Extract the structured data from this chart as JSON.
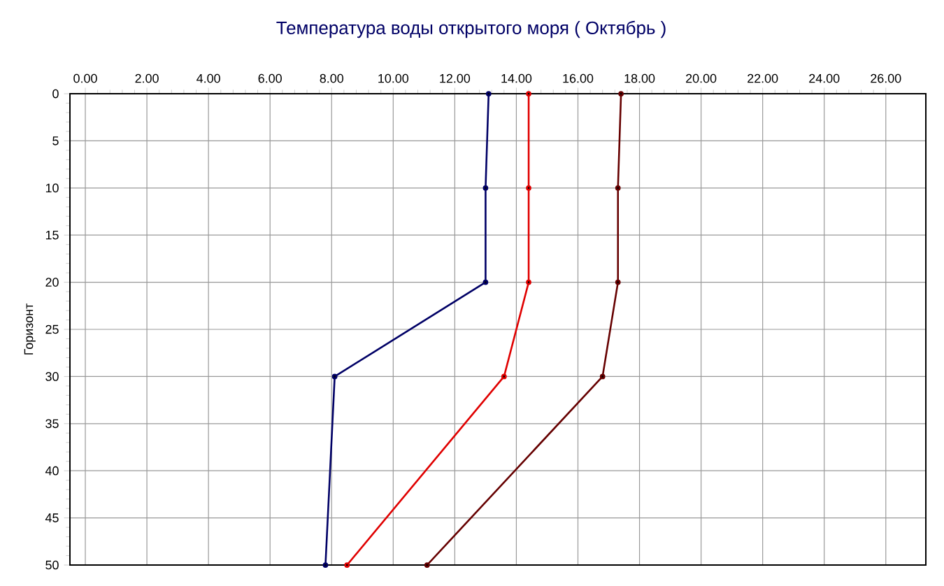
{
  "chart_data": {
    "type": "line",
    "title": "Температура воды открытого моря     ( Октябрь )",
    "ylabel": "Горизонт",
    "series": [
      {
        "color": "#000066",
        "x": [
          13.1,
          13.0,
          13.0,
          8.1,
          7.8
        ],
        "values": [
          0,
          10,
          20,
          30,
          50
        ]
      },
      {
        "color": "#e00000",
        "x": [
          14.4,
          14.4,
          14.4,
          13.6,
          8.5
        ],
        "values": [
          0,
          10,
          20,
          30,
          50
        ]
      },
      {
        "color": "#660000",
        "x": [
          17.4,
          17.3,
          17.3,
          16.8,
          11.1
        ],
        "values": [
          0,
          10,
          20,
          30,
          50
        ]
      }
    ],
    "xlim": [
      -0.5,
      27.3
    ],
    "ylim": [
      50,
      0
    ],
    "xticks": [
      {
        "value": 0,
        "label": "0.00"
      },
      {
        "value": 2,
        "label": "2.00"
      },
      {
        "value": 4,
        "label": "4.00"
      },
      {
        "value": 6,
        "label": "6.00"
      },
      {
        "value": 8,
        "label": "8.00"
      },
      {
        "value": 10,
        "label": "10.00"
      },
      {
        "value": 12,
        "label": "12.00"
      },
      {
        "value": 14,
        "label": "14.00"
      },
      {
        "value": 16,
        "label": "16.00"
      },
      {
        "value": 18,
        "label": "18.00"
      },
      {
        "value": 20,
        "label": "20.00"
      },
      {
        "value": 22,
        "label": "22.00"
      },
      {
        "value": 24,
        "label": "24.00"
      },
      {
        "value": 26,
        "label": "26.00"
      }
    ],
    "yticks": [
      0,
      5,
      10,
      15,
      20,
      25,
      30,
      35,
      40,
      45,
      50
    ],
    "grid": true,
    "marker": "circle",
    "line_style": "solid"
  }
}
